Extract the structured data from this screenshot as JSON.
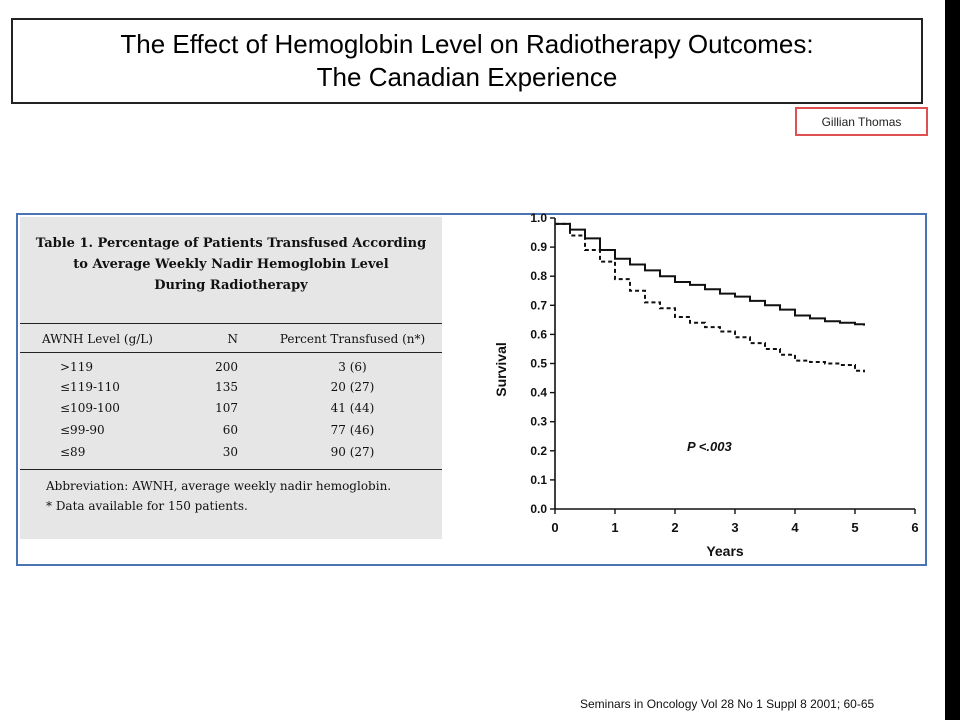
{
  "slide": {
    "title_line1": "The Effect of Hemoglobin Level on Radiotherapy Outcomes:",
    "title_line2": "The Canadian Experience",
    "author": "Gillian Thomas",
    "citation": "Seminars in Oncology Vol 28 No 1 Suppl 8 2001; 60-65"
  },
  "table": {
    "title_line1": "Table 1.  Percentage of Patients Transfused According",
    "title_line2": "to Average Weekly Nadir Hemoglobin Level",
    "title_line3": "During Radiotherapy",
    "headers": [
      "AWNH Level (g/L)",
      "N",
      "Percent Transfused (n*)"
    ],
    "rows": [
      {
        "level": ">119",
        "n": "200",
        "pct": "3 (6)"
      },
      {
        "level": "≤119-110",
        "n": "135",
        "pct": "20 (27)"
      },
      {
        "level": "≤109-100",
        "n": "107",
        "pct": "41 (44)"
      },
      {
        "level": "≤99-90",
        "n": "60",
        "pct": "77 (46)"
      },
      {
        "level": "≤89",
        "n": "30",
        "pct": "90 (27)"
      }
    ],
    "footnote1": "Abbreviation: AWNH, average weekly nadir hemoglobin.",
    "footnote2": "* Data available for 150 patients."
  },
  "chart_data": {
    "type": "line",
    "title": "",
    "xlabel": "Years",
    "ylabel": "Survival",
    "xlim": [
      0,
      6
    ],
    "ylim": [
      0.0,
      1.0
    ],
    "xticks": [
      "0",
      "1",
      "2",
      "3",
      "4",
      "5",
      "6"
    ],
    "yticks": [
      "0.0",
      "0.1",
      "0.2",
      "0.3",
      "0.4",
      "0.5",
      "0.6",
      "0.7",
      "0.8",
      "0.9",
      "1.0"
    ],
    "annotation": "P <.003",
    "annotation_at": [
      2.2,
      0.2
    ],
    "series": [
      {
        "style": "solid",
        "x": [
          0,
          0.25,
          0.5,
          0.75,
          1.0,
          1.25,
          1.5,
          1.75,
          2.0,
          2.25,
          2.5,
          2.75,
          3.0,
          3.25,
          3.5,
          3.75,
          4.0,
          4.25,
          4.5,
          4.75,
          5.0,
          5.15
        ],
        "y": [
          0.98,
          0.96,
          0.93,
          0.89,
          0.86,
          0.84,
          0.82,
          0.8,
          0.78,
          0.77,
          0.755,
          0.74,
          0.73,
          0.715,
          0.7,
          0.685,
          0.665,
          0.655,
          0.645,
          0.64,
          0.635,
          0.63
        ]
      },
      {
        "style": "dashed",
        "x": [
          0,
          0.25,
          0.5,
          0.75,
          1.0,
          1.25,
          1.5,
          1.75,
          2.0,
          2.25,
          2.5,
          2.75,
          3.0,
          3.25,
          3.5,
          3.75,
          4.0,
          4.25,
          4.5,
          4.75,
          5.0,
          5.15
        ],
        "y": [
          0.98,
          0.94,
          0.89,
          0.85,
          0.79,
          0.75,
          0.71,
          0.69,
          0.66,
          0.64,
          0.625,
          0.61,
          0.59,
          0.57,
          0.55,
          0.53,
          0.51,
          0.505,
          0.5,
          0.495,
          0.475,
          0.47
        ]
      }
    ]
  }
}
